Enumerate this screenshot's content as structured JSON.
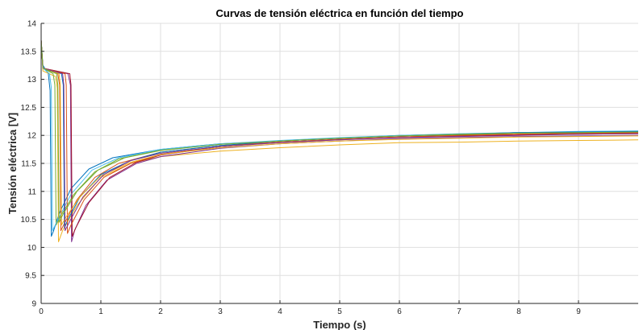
{
  "chart_data": {
    "type": "line",
    "title": "Curvas de tensión eléctrica en función del tiempo",
    "xlabel": "Tiempo (s)",
    "ylabel": "Tensión eléctrica [V]",
    "xlim": [
      0,
      10
    ],
    "ylim": [
      9,
      14
    ],
    "xticks": [
      0,
      1,
      2,
      3,
      4,
      5,
      6,
      7,
      8,
      9
    ],
    "yticks": [
      9,
      9.5,
      10,
      10.5,
      11,
      11.5,
      12,
      12.5,
      13,
      13.5,
      14
    ],
    "xtick_labels": [
      "0",
      "1",
      "2",
      "3",
      "4",
      "5",
      "6",
      "7",
      "8",
      "9"
    ],
    "ytick_labels": [
      "9",
      "9.5",
      "10",
      "10.5",
      "11",
      "11.5",
      "12",
      "12.5",
      "13",
      "13.5",
      "14"
    ],
    "grid": true,
    "legend": "none",
    "series": [
      {
        "color": "#0072BD",
        "points": [
          [
            0,
            13.7
          ],
          [
            0.03,
            13.25
          ],
          [
            0.12,
            13.1
          ],
          [
            0.15,
            12.8
          ],
          [
            0.17,
            10.2
          ],
          [
            0.21,
            10.3
          ],
          [
            0.3,
            10.6
          ],
          [
            0.5,
            11.05
          ],
          [
            0.8,
            11.4
          ],
          [
            1.2,
            11.6
          ],
          [
            2,
            11.75
          ],
          [
            3,
            11.85
          ],
          [
            4,
            11.9
          ],
          [
            5,
            11.95
          ],
          [
            6,
            12.0
          ],
          [
            7,
            12.02
          ],
          [
            8,
            12.05
          ],
          [
            9,
            12.06
          ],
          [
            10,
            12.07
          ]
        ]
      },
      {
        "color": "#D95319",
        "points": [
          [
            0,
            13.7
          ],
          [
            0.03,
            13.2
          ],
          [
            0.28,
            13.1
          ],
          [
            0.31,
            12.9
          ],
          [
            0.33,
            10.3
          ],
          [
            0.4,
            10.45
          ],
          [
            0.6,
            10.85
          ],
          [
            0.9,
            11.25
          ],
          [
            1.3,
            11.5
          ],
          [
            2,
            11.7
          ],
          [
            3,
            11.82
          ],
          [
            4,
            11.88
          ],
          [
            5,
            11.93
          ],
          [
            6,
            11.97
          ],
          [
            7,
            12.0
          ],
          [
            8,
            12.02
          ],
          [
            9,
            12.03
          ],
          [
            10,
            12.04
          ]
        ]
      },
      {
        "color": "#EDB120",
        "points": [
          [
            0,
            13.7
          ],
          [
            0.03,
            13.15
          ],
          [
            0.24,
            13.05
          ],
          [
            0.27,
            12.85
          ],
          [
            0.29,
            10.1
          ],
          [
            0.36,
            10.3
          ],
          [
            0.6,
            10.75
          ],
          [
            1.0,
            11.25
          ],
          [
            1.5,
            11.5
          ],
          [
            2,
            11.62
          ],
          [
            3,
            11.72
          ],
          [
            4,
            11.78
          ],
          [
            5,
            11.83
          ],
          [
            6,
            11.87
          ],
          [
            7,
            11.88
          ],
          [
            8,
            11.9
          ],
          [
            9,
            11.91
          ],
          [
            10,
            11.92
          ]
        ]
      },
      {
        "color": "#7E2F8E",
        "points": [
          [
            0,
            13.7
          ],
          [
            0.03,
            13.2
          ],
          [
            0.45,
            13.1
          ],
          [
            0.49,
            12.9
          ],
          [
            0.51,
            10.1
          ],
          [
            0.56,
            10.3
          ],
          [
            0.75,
            10.75
          ],
          [
            1.1,
            11.2
          ],
          [
            1.6,
            11.5
          ],
          [
            2,
            11.62
          ],
          [
            3,
            11.77
          ],
          [
            4,
            11.85
          ],
          [
            5,
            11.9
          ],
          [
            6,
            11.94
          ],
          [
            7,
            11.96
          ],
          [
            8,
            11.98
          ],
          [
            9,
            11.99
          ],
          [
            10,
            12.0
          ]
        ]
      },
      {
        "color": "#77AC30",
        "points": [
          [
            0,
            13.7
          ],
          [
            0.03,
            13.2
          ],
          [
            0.2,
            13.1
          ],
          [
            0.23,
            12.9
          ],
          [
            0.25,
            10.4
          ],
          [
            0.32,
            10.55
          ],
          [
            0.55,
            10.95
          ],
          [
            0.9,
            11.35
          ],
          [
            1.3,
            11.58
          ],
          [
            2,
            11.74
          ],
          [
            3,
            11.84
          ],
          [
            4,
            11.9
          ],
          [
            5,
            11.95
          ],
          [
            6,
            11.99
          ],
          [
            7,
            12.01
          ],
          [
            8,
            12.04
          ],
          [
            9,
            12.05
          ],
          [
            10,
            12.06
          ]
        ]
      },
      {
        "color": "#4DBEEE",
        "points": [
          [
            0,
            13.7
          ],
          [
            0.03,
            13.2
          ],
          [
            0.14,
            13.1
          ],
          [
            0.17,
            12.85
          ],
          [
            0.19,
            10.3
          ],
          [
            0.26,
            10.45
          ],
          [
            0.5,
            10.95
          ],
          [
            0.85,
            11.38
          ],
          [
            1.3,
            11.6
          ],
          [
            2,
            11.75
          ],
          [
            3,
            11.85
          ],
          [
            4,
            11.91
          ],
          [
            5,
            11.96
          ],
          [
            6,
            12.0
          ],
          [
            7,
            12.03
          ],
          [
            8,
            12.05
          ],
          [
            9,
            12.07
          ],
          [
            10,
            12.08
          ]
        ]
      },
      {
        "color": "#A2142F",
        "points": [
          [
            0,
            13.7
          ],
          [
            0.03,
            13.2
          ],
          [
            0.48,
            13.1
          ],
          [
            0.5,
            12.9
          ],
          [
            0.52,
            10.2
          ],
          [
            0.58,
            10.35
          ],
          [
            0.8,
            10.8
          ],
          [
            1.15,
            11.25
          ],
          [
            1.6,
            11.52
          ],
          [
            2,
            11.65
          ],
          [
            3,
            11.8
          ],
          [
            4,
            11.88
          ],
          [
            5,
            11.93
          ],
          [
            6,
            11.97
          ],
          [
            7,
            11.99
          ],
          [
            8,
            12.01
          ],
          [
            9,
            12.02
          ],
          [
            10,
            12.03
          ]
        ]
      },
      {
        "color": "#0072BD",
        "points": [
          [
            0,
            13.7
          ],
          [
            0.03,
            13.2
          ],
          [
            0.34,
            13.1
          ],
          [
            0.37,
            12.9
          ],
          [
            0.39,
            10.35
          ],
          [
            0.45,
            10.5
          ],
          [
            0.65,
            10.9
          ],
          [
            1.0,
            11.3
          ],
          [
            1.5,
            11.55
          ],
          [
            2,
            11.7
          ],
          [
            3,
            11.82
          ],
          [
            4,
            11.9
          ],
          [
            5,
            11.95
          ],
          [
            6,
            11.99
          ],
          [
            7,
            12.02
          ],
          [
            8,
            12.05
          ],
          [
            9,
            12.06
          ],
          [
            10,
            12.07
          ]
        ]
      },
      {
        "color": "#D95319",
        "points": [
          [
            0,
            13.7
          ],
          [
            0.03,
            13.2
          ],
          [
            0.4,
            13.1
          ],
          [
            0.42,
            12.9
          ],
          [
            0.44,
            10.25
          ],
          [
            0.5,
            10.4
          ],
          [
            0.72,
            10.85
          ],
          [
            1.05,
            11.25
          ],
          [
            1.5,
            11.5
          ],
          [
            2,
            11.66
          ],
          [
            3,
            11.8
          ],
          [
            4,
            11.88
          ],
          [
            5,
            11.93
          ],
          [
            6,
            11.97
          ],
          [
            7,
            12.0
          ],
          [
            8,
            12.02
          ],
          [
            9,
            12.04
          ],
          [
            10,
            12.05
          ]
        ]
      },
      {
        "color": "#EDB120",
        "points": [
          [
            0,
            13.7
          ],
          [
            0.03,
            13.2
          ],
          [
            0.3,
            13.1
          ],
          [
            0.32,
            12.9
          ],
          [
            0.34,
            10.4
          ],
          [
            0.42,
            10.55
          ],
          [
            0.65,
            10.9
          ],
          [
            1.0,
            11.28
          ],
          [
            1.5,
            11.52
          ],
          [
            2,
            11.66
          ],
          [
            3,
            11.78
          ],
          [
            4,
            11.85
          ],
          [
            5,
            11.9
          ],
          [
            6,
            11.93
          ],
          [
            7,
            11.95
          ],
          [
            8,
            11.97
          ],
          [
            9,
            11.98
          ],
          [
            10,
            11.99
          ]
        ]
      },
      {
        "color": "#7E2F8E",
        "points": [
          [
            0,
            13.7
          ],
          [
            0.03,
            13.2
          ],
          [
            0.36,
            13.1
          ],
          [
            0.38,
            12.9
          ],
          [
            0.4,
            10.3
          ],
          [
            0.47,
            10.45
          ],
          [
            0.7,
            10.9
          ],
          [
            1.05,
            11.3
          ],
          [
            1.5,
            11.55
          ],
          [
            2,
            11.68
          ],
          [
            3,
            11.8
          ],
          [
            4,
            11.87
          ],
          [
            5,
            11.92
          ],
          [
            6,
            11.96
          ],
          [
            7,
            11.98
          ],
          [
            8,
            12.0
          ],
          [
            9,
            12.02
          ],
          [
            10,
            12.03
          ]
        ]
      },
      {
        "color": "#77AC30",
        "points": [
          [
            0,
            13.7
          ],
          [
            0.03,
            13.2
          ],
          [
            0.26,
            13.1
          ],
          [
            0.28,
            12.9
          ],
          [
            0.3,
            10.45
          ],
          [
            0.37,
            10.6
          ],
          [
            0.6,
            11.0
          ],
          [
            0.95,
            11.38
          ],
          [
            1.4,
            11.6
          ],
          [
            2,
            11.73
          ],
          [
            3,
            11.84
          ],
          [
            4,
            11.9
          ],
          [
            5,
            11.95
          ],
          [
            6,
            11.99
          ],
          [
            7,
            12.02
          ],
          [
            8,
            12.04
          ],
          [
            9,
            12.05
          ],
          [
            10,
            12.06
          ]
        ]
      }
    ]
  }
}
